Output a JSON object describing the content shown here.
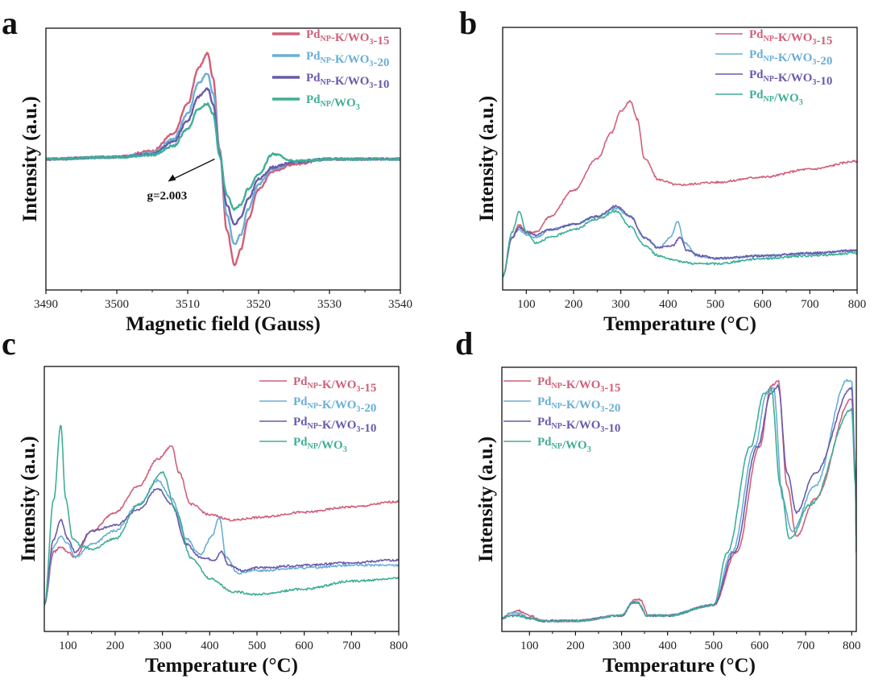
{
  "panels": [
    {
      "label": "a",
      "xlabel": "Magnetic field (Gauss)",
      "ylabel": "Intensity (a.u.)",
      "legend_style": "thick",
      "annotation": "g=2.003"
    },
    {
      "label": "b",
      "xlabel": "Temperature (°C)",
      "ylabel": "Intensity (a.u.)",
      "legend_style": "thin"
    },
    {
      "label": "c",
      "xlabel": "Temperature (°C)",
      "ylabel": "Intensity (a.u.)",
      "legend_style": "thin"
    },
    {
      "label": "d",
      "xlabel": "Temperature (°C)",
      "ylabel": "Intensity (a.u.)",
      "legend_style": "thin"
    }
  ],
  "legend": [
    {
      "main": "Pd",
      "sub": "NP",
      "rest": "-K/WO",
      "sub2": "3",
      "tail": "-15",
      "color": "#d0607a"
    },
    {
      "main": "Pd",
      "sub": "NP",
      "rest": "-K/WO",
      "sub2": "3",
      "tail": "-20",
      "color": "#6aaed6"
    },
    {
      "main": "Pd",
      "sub": "NP",
      "rest": "-K/WO",
      "sub2": "3",
      "tail": "-10",
      "color": "#6a5aaa"
    },
    {
      "main": "Pd",
      "sub": "NP",
      "rest": "/WO",
      "sub2": "3",
      "tail": "",
      "color": "#3fae97"
    }
  ],
  "chart_data": [
    {
      "type": "line",
      "panel": "a",
      "xlabel": "Magnetic field (Gauss)",
      "ylabel": "Intensity (a.u.)",
      "xlim": [
        3490,
        3540
      ],
      "ylim": [
        -1.3,
        1.3
      ],
      "xticks": [
        3490,
        3500,
        3510,
        3520,
        3530,
        3540
      ],
      "yticks_shown": false,
      "annotation": {
        "text": "g=2.003",
        "x": 3513.8,
        "y": 0.0
      },
      "series": [
        {
          "name": "PdNP-K/WO3-15",
          "color": "#d0607a",
          "x": [
            3490,
            3500,
            3505,
            3508,
            3510,
            3511.5,
            3512.8,
            3513.6,
            3514.5,
            3515.5,
            3516.6,
            3517.5,
            3518.5,
            3520,
            3522,
            3525,
            3530,
            3540
          ],
          "y": [
            0,
            0.02,
            0.08,
            0.25,
            0.55,
            0.9,
            1.05,
            0.8,
            0.1,
            -0.7,
            -1.05,
            -0.9,
            -0.6,
            -0.3,
            -0.12,
            -0.05,
            0,
            0
          ]
        },
        {
          "name": "PdNP-K/WO3-20",
          "color": "#6aaed6",
          "x": [
            3490,
            3500,
            3505,
            3508,
            3510,
            3511.5,
            3512.8,
            3513.6,
            3514.5,
            3515.5,
            3516.6,
            3517.5,
            3518.5,
            3520,
            3522,
            3525,
            3530,
            3540
          ],
          "y": [
            0,
            0.02,
            0.06,
            0.2,
            0.45,
            0.75,
            0.85,
            0.65,
            0.08,
            -0.55,
            -0.85,
            -0.75,
            -0.5,
            -0.25,
            -0.1,
            -0.03,
            0,
            0
          ]
        },
        {
          "name": "PdNP-K/WO3-10",
          "color": "#6a5aaa",
          "x": [
            3490,
            3500,
            3505,
            3508,
            3510,
            3511.5,
            3512.8,
            3513.6,
            3514.5,
            3515.5,
            3516.6,
            3517.5,
            3518.5,
            3520,
            3522,
            3525,
            3530,
            3540
          ],
          "y": [
            0,
            0.02,
            0.05,
            0.17,
            0.38,
            0.62,
            0.7,
            0.55,
            0.05,
            -0.45,
            -0.65,
            -0.58,
            -0.4,
            -0.2,
            -0.08,
            -0.03,
            0,
            0
          ]
        },
        {
          "name": "PdNP/WO3",
          "color": "#3fae97",
          "x": [
            3490,
            3500,
            3505,
            3508,
            3510,
            3511.5,
            3512.8,
            3513.6,
            3514.5,
            3515.5,
            3516.6,
            3517.5,
            3518.5,
            3520,
            3522,
            3525,
            3530,
            3540
          ],
          "y": [
            0,
            0.02,
            0.04,
            0.13,
            0.3,
            0.5,
            0.55,
            0.45,
            0.03,
            -0.35,
            -0.5,
            -0.45,
            -0.3,
            -0.15,
            0.05,
            -0.02,
            0,
            0
          ]
        }
      ]
    },
    {
      "type": "line",
      "panel": "b",
      "xlabel": "Temperature (°C)",
      "ylabel": "Intensity (a.u.)",
      "xlim": [
        50,
        800
      ],
      "ylim": [
        0,
        1
      ],
      "xticks": [
        100,
        200,
        300,
        400,
        500,
        600,
        700,
        800
      ],
      "yticks_shown": false,
      "series": [
        {
          "name": "PdNP-K/WO3-15",
          "color": "#d0607a",
          "x": [
            50,
            70,
            85,
            100,
            120,
            150,
            200,
            250,
            280,
            300,
            320,
            335,
            350,
            380,
            420,
            500,
            600,
            700,
            800
          ],
          "y": [
            0.05,
            0.2,
            0.25,
            0.22,
            0.22,
            0.28,
            0.38,
            0.5,
            0.6,
            0.68,
            0.72,
            0.65,
            0.5,
            0.42,
            0.4,
            0.41,
            0.43,
            0.46,
            0.49
          ]
        },
        {
          "name": "PdNP-K/WO3-20",
          "color": "#6aaed6",
          "x": [
            50,
            70,
            85,
            100,
            120,
            150,
            200,
            250,
            290,
            320,
            350,
            380,
            405,
            420,
            435,
            460,
            500,
            600,
            700,
            800
          ],
          "y": [
            0.05,
            0.2,
            0.23,
            0.21,
            0.2,
            0.23,
            0.25,
            0.28,
            0.31,
            0.28,
            0.2,
            0.16,
            0.2,
            0.26,
            0.18,
            0.13,
            0.12,
            0.13,
            0.14,
            0.15
          ]
        },
        {
          "name": "PdNP-K/WO3-10",
          "color": "#6a5aaa",
          "x": [
            50,
            70,
            85,
            100,
            120,
            150,
            200,
            250,
            290,
            320,
            350,
            380,
            410,
            425,
            440,
            470,
            500,
            600,
            700,
            800
          ],
          "y": [
            0.05,
            0.2,
            0.24,
            0.22,
            0.21,
            0.23,
            0.25,
            0.28,
            0.32,
            0.28,
            0.2,
            0.16,
            0.17,
            0.2,
            0.15,
            0.13,
            0.12,
            0.13,
            0.14,
            0.15
          ]
        },
        {
          "name": "PdNP/WO3",
          "color": "#3fae97",
          "x": [
            50,
            70,
            85,
            100,
            120,
            150,
            200,
            250,
            290,
            320,
            350,
            380,
            420,
            460,
            500,
            600,
            700,
            800
          ],
          "y": [
            0.05,
            0.22,
            0.3,
            0.22,
            0.18,
            0.2,
            0.23,
            0.27,
            0.3,
            0.24,
            0.17,
            0.13,
            0.11,
            0.1,
            0.1,
            0.12,
            0.13,
            0.14
          ]
        }
      ]
    },
    {
      "type": "line",
      "panel": "c",
      "xlabel": "Temperature (°C)",
      "ylabel": "Intensity (a.u.)",
      "xlim": [
        50,
        800
      ],
      "ylim": [
        0,
        1
      ],
      "xticks": [
        100,
        200,
        300,
        400,
        500,
        600,
        700,
        800
      ],
      "yticks_shown": false,
      "series": [
        {
          "name": "PdNP-K/WO3-15",
          "color": "#d0607a",
          "x": [
            50,
            70,
            85,
            100,
            115,
            150,
            200,
            250,
            290,
            320,
            335,
            360,
            400,
            450,
            500,
            600,
            700,
            800
          ],
          "y": [
            0.1,
            0.3,
            0.32,
            0.3,
            0.28,
            0.38,
            0.45,
            0.55,
            0.65,
            0.7,
            0.6,
            0.48,
            0.44,
            0.42,
            0.43,
            0.45,
            0.47,
            0.49
          ]
        },
        {
          "name": "PdNP-K/WO3-20",
          "color": "#6aaed6",
          "x": [
            50,
            70,
            85,
            100,
            115,
            150,
            200,
            250,
            290,
            320,
            350,
            380,
            405,
            420,
            435,
            460,
            500,
            600,
            700,
            800
          ],
          "y": [
            0.1,
            0.32,
            0.36,
            0.33,
            0.28,
            0.33,
            0.38,
            0.48,
            0.57,
            0.5,
            0.35,
            0.29,
            0.36,
            0.43,
            0.28,
            0.22,
            0.23,
            0.24,
            0.25,
            0.25
          ]
        },
        {
          "name": "PdNP-K/WO3-10",
          "color": "#6a5aaa",
          "x": [
            50,
            70,
            85,
            100,
            115,
            150,
            200,
            250,
            290,
            320,
            350,
            380,
            410,
            425,
            440,
            470,
            500,
            600,
            700,
            800
          ],
          "y": [
            0.1,
            0.35,
            0.42,
            0.35,
            0.3,
            0.38,
            0.4,
            0.46,
            0.54,
            0.48,
            0.33,
            0.28,
            0.27,
            0.3,
            0.25,
            0.23,
            0.24,
            0.25,
            0.26,
            0.27
          ]
        },
        {
          "name": "PdNP/WO3",
          "color": "#3fae97",
          "x": [
            50,
            70,
            85,
            95,
            110,
            130,
            150,
            200,
            250,
            300,
            330,
            360,
            400,
            450,
            500,
            600,
            700,
            800
          ],
          "y": [
            0.1,
            0.5,
            0.78,
            0.5,
            0.35,
            0.32,
            0.31,
            0.35,
            0.48,
            0.6,
            0.45,
            0.28,
            0.2,
            0.15,
            0.14,
            0.16,
            0.19,
            0.2
          ]
        }
      ]
    },
    {
      "type": "line",
      "panel": "d",
      "xlabel": "Temperature (°C)",
      "ylabel": "Intensity (a.u.)",
      "xlim": [
        40,
        810
      ],
      "ylim": [
        0,
        1
      ],
      "xticks": [
        100,
        200,
        300,
        400,
        500,
        600,
        700,
        800
      ],
      "yticks_shown": false,
      "series": [
        {
          "name": "PdNP-K/WO3-15",
          "color": "#d0607a",
          "x": [
            40,
            60,
            75,
            100,
            130,
            200,
            300,
            330,
            340,
            360,
            400,
            500,
            550,
            600,
            625,
            640,
            660,
            680,
            720,
            800,
            808,
            810
          ],
          "y": [
            0.05,
            0.07,
            0.08,
            0.06,
            0.04,
            0.04,
            0.06,
            0.12,
            0.12,
            0.06,
            0.06,
            0.1,
            0.3,
            0.7,
            0.93,
            0.95,
            0.55,
            0.36,
            0.5,
            0.88,
            0.6,
            0.3
          ]
        },
        {
          "name": "PdNP-K/WO3-20",
          "color": "#6aaed6",
          "x": [
            40,
            60,
            75,
            100,
            130,
            200,
            300,
            325,
            335,
            355,
            400,
            500,
            540,
            590,
            615,
            630,
            650,
            670,
            720,
            790,
            800,
            808,
            810
          ],
          "y": [
            0.05,
            0.07,
            0.07,
            0.05,
            0.04,
            0.04,
            0.06,
            0.11,
            0.11,
            0.06,
            0.06,
            0.1,
            0.3,
            0.7,
            0.9,
            0.92,
            0.5,
            0.38,
            0.55,
            0.95,
            0.95,
            0.6,
            0.3
          ]
        },
        {
          "name": "PdNP-K/WO3-10",
          "color": "#6a5aaa",
          "x": [
            40,
            60,
            75,
            100,
            130,
            200,
            300,
            325,
            335,
            355,
            400,
            500,
            545,
            595,
            625,
            640,
            660,
            680,
            720,
            800,
            808,
            810
          ],
          "y": [
            0.05,
            0.06,
            0.06,
            0.05,
            0.04,
            0.04,
            0.06,
            0.11,
            0.11,
            0.06,
            0.06,
            0.1,
            0.3,
            0.7,
            0.9,
            0.93,
            0.6,
            0.45,
            0.6,
            0.92,
            0.6,
            0.3
          ]
        },
        {
          "name": "PdNP/WO3",
          "color": "#3fae97",
          "x": [
            40,
            60,
            75,
            100,
            130,
            200,
            300,
            325,
            335,
            355,
            400,
            500,
            530,
            580,
            610,
            625,
            645,
            665,
            710,
            800,
            808,
            810
          ],
          "y": [
            0.05,
            0.06,
            0.06,
            0.05,
            0.04,
            0.04,
            0.06,
            0.11,
            0.11,
            0.06,
            0.06,
            0.1,
            0.3,
            0.7,
            0.9,
            0.92,
            0.55,
            0.35,
            0.48,
            0.84,
            0.55,
            0.3
          ]
        }
      ]
    }
  ]
}
